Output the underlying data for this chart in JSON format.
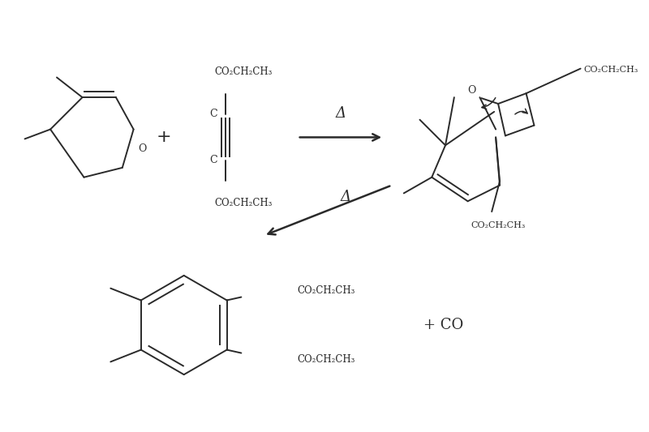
{
  "line_color": "#2a2a2a",
  "figsize": [
    8.0,
    5.33
  ],
  "dpi": 100,
  "xlim": [
    0,
    8
  ],
  "ylim": [
    0,
    5.33
  ]
}
